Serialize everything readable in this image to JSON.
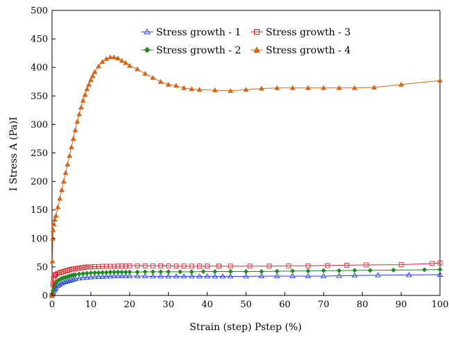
{
  "chart_data": {
    "type": "line",
    "xlabel": "Strain (step) Pstep (%)",
    "ylabel": "I Stress A (Pa)I",
    "xlim": [
      0,
      100
    ],
    "ylim": [
      0,
      500
    ],
    "x_ticks": [
      "0",
      "10",
      "20",
      "30",
      "40",
      "50",
      "60",
      "70",
      "80",
      "90",
      "100"
    ],
    "y_ticks": [
      "0",
      "50",
      "100",
      "150",
      "200",
      "250",
      "300",
      "350",
      "400",
      "450",
      "500"
    ],
    "grid": false,
    "legend_position": "top-center",
    "series": [
      {
        "name": "Stress growth - 1",
        "color": "#1f3fd6",
        "marker": "triangle-open",
        "x": [
          0,
          0.2,
          0.4,
          0.6,
          0.8,
          1,
          1.5,
          2,
          2.5,
          3,
          3.5,
          4,
          4.5,
          5,
          5.5,
          6,
          7,
          8,
          9,
          10,
          11,
          12,
          13,
          14,
          15,
          16,
          17,
          18,
          19,
          20,
          22,
          24,
          26,
          28,
          30,
          32,
          34,
          36,
          38,
          40,
          42,
          44,
          46,
          50,
          54,
          58,
          62,
          66,
          70,
          74,
          78,
          84,
          92,
          100
        ],
        "y": [
          0,
          4,
          7,
          10,
          12,
          14,
          17,
          19,
          21,
          23,
          24,
          25,
          26,
          27,
          28,
          29,
          30,
          31,
          31.5,
          32,
          32.5,
          33,
          33,
          33.5,
          33.5,
          34,
          34,
          34,
          34,
          34,
          34,
          34,
          33.5,
          33.5,
          33.5,
          33.5,
          33.5,
          33.5,
          33.5,
          33.5,
          33.5,
          33.5,
          33.5,
          33.5,
          34,
          34,
          34,
          34,
          34,
          34.5,
          35,
          35.5,
          36,
          36.5
        ]
      },
      {
        "name": "Stress growth - 2",
        "color": "#1e8a1e",
        "marker": "diamond",
        "x": [
          0,
          0.2,
          0.4,
          0.6,
          0.8,
          1,
          1.5,
          2,
          2.5,
          3,
          3.5,
          4,
          4.5,
          5,
          5.5,
          6,
          7,
          8,
          9,
          10,
          11,
          12,
          13,
          14,
          15,
          16,
          17,
          18,
          19,
          20,
          22,
          24,
          26,
          28,
          30,
          33,
          36,
          39,
          42,
          46,
          50,
          54,
          58,
          62,
          66,
          70,
          74,
          78,
          82,
          88,
          96,
          100
        ],
        "y": [
          0,
          8,
          14,
          18,
          21,
          23,
          26,
          28,
          30,
          31,
          32,
          33,
          34,
          35,
          36,
          36.5,
          37.5,
          38.5,
          39,
          39.5,
          40,
          40,
          40.5,
          40.5,
          41,
          41,
          41,
          41,
          41,
          41,
          41,
          41.5,
          41.5,
          41.5,
          41.5,
          41.5,
          41.5,
          42,
          42,
          42,
          42,
          42,
          42.5,
          43,
          43,
          43.5,
          43.5,
          44,
          44,
          44.5,
          45,
          45.5
        ]
      },
      {
        "name": "Stress growth - 3",
        "color": "#e0202a",
        "marker": "square-open",
        "x": [
          0,
          0.2,
          0.4,
          0.6,
          0.8,
          1,
          1.5,
          2,
          2.5,
          3,
          3.5,
          4,
          4.5,
          5,
          5.5,
          6,
          6.5,
          7,
          7.5,
          8,
          8.5,
          9,
          9.5,
          10,
          11,
          12,
          13,
          14,
          15,
          16,
          17,
          18,
          19,
          20,
          22,
          24,
          26,
          28,
          30,
          32,
          34,
          36,
          38,
          40,
          43,
          46,
          51,
          56,
          61,
          66,
          71,
          76,
          81,
          90,
          98,
          100
        ],
        "y": [
          0,
          20,
          30,
          34,
          36,
          37,
          39,
          40,
          41,
          42,
          43,
          44,
          45,
          46,
          46.5,
          47,
          47.5,
          48,
          48.5,
          49,
          49.5,
          50,
          50,
          50,
          50.5,
          50.5,
          51,
          51,
          51,
          51,
          51.5,
          51.5,
          51.5,
          52,
          52,
          52,
          52,
          52,
          52,
          51.5,
          51.5,
          51.5,
          51.5,
          51.5,
          51.5,
          51.5,
          51.5,
          51.5,
          52,
          52,
          52.5,
          53,
          53.5,
          54,
          56,
          57
        ]
      },
      {
        "name": "Stress growth - 4",
        "color": "#d4661a",
        "marker": "triangle-filled",
        "x": [
          0,
          0.1,
          0.2,
          0.3,
          0.5,
          0.7,
          1,
          1.5,
          2,
          2.5,
          3,
          3.5,
          4,
          4.5,
          5,
          5.5,
          6,
          6.5,
          7,
          7.5,
          8,
          8.5,
          9,
          9.5,
          10,
          10.5,
          11,
          12,
          13,
          14,
          15,
          16,
          17,
          18,
          19,
          20,
          22,
          24,
          26,
          28,
          30,
          32,
          34,
          36,
          38,
          42,
          46,
          50,
          54,
          58,
          62,
          66,
          70,
          74,
          78,
          83,
          90,
          100
        ],
        "y": [
          0,
          60,
          100,
          115,
          125,
          133,
          140,
          155,
          170,
          185,
          200,
          215,
          230,
          245,
          260,
          275,
          290,
          305,
          318,
          330,
          342,
          352,
          362,
          370,
          378,
          385,
          392,
          402,
          410,
          415,
          418,
          418,
          416,
          412,
          408,
          403,
          397,
          389,
          382,
          375,
          370,
          368,
          364,
          362,
          361,
          360,
          359,
          361,
          363,
          364,
          364,
          364,
          364,
          364,
          364,
          365,
          370,
          377
        ]
      }
    ]
  }
}
